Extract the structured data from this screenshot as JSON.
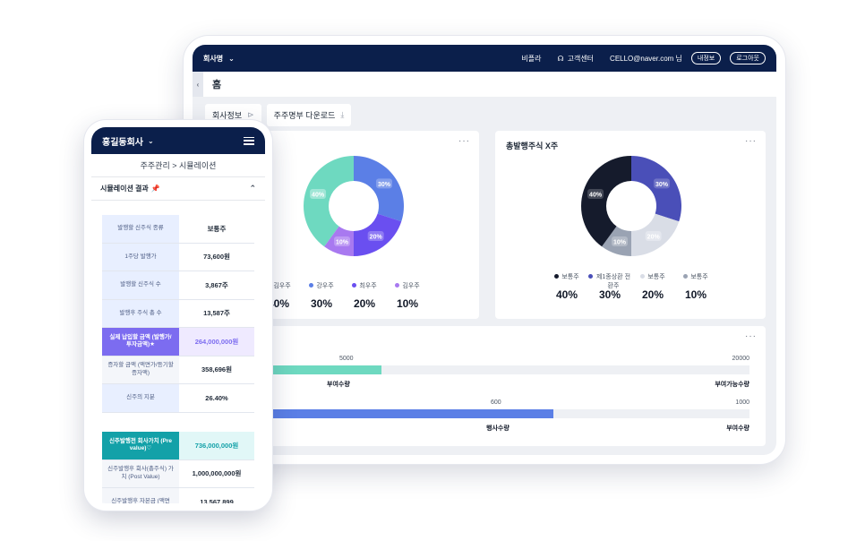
{
  "tablet": {
    "topbar": {
      "company": "회사명",
      "link_beta": "비플라",
      "link_support": "고객센터",
      "user": "CELLO@naver.com 님",
      "btn_mypage": "내정보",
      "btn_logout": "로그아웃"
    },
    "home": "홈",
    "tabs": [
      {
        "label": "회사정보",
        "icon": "chevron-right-circle-icon"
      },
      {
        "label": "주주명부 다운로드",
        "icon": "download-icon"
      }
    ],
    "chart_left": {
      "legend": [
        {
          "name": "김우주",
          "value": "40%"
        },
        {
          "name": "강우주",
          "value": "30%"
        },
        {
          "name": "최우주",
          "value": "20%"
        },
        {
          "name": "김우주",
          "value": "10%"
        }
      ]
    },
    "chart_right": {
      "title": "총발행주식 X주",
      "legend": [
        {
          "name": "보통주",
          "value": "40%"
        },
        {
          "name": "제1종상환 전환주",
          "value": "30%"
        },
        {
          "name": "보통주",
          "value": "20%"
        },
        {
          "name": "보통주",
          "value": "10%"
        }
      ]
    },
    "bars": {
      "bar1": {
        "value_label": "5000",
        "max_label": "20000",
        "label": "부여수량",
        "end_label": "부여가능수량"
      },
      "bar2": {
        "value_label": "600",
        "max_label": "1000",
        "label": "행사수량",
        "end_label": "부여수량"
      }
    }
  },
  "chart_data": [
    {
      "type": "pie",
      "categories": [
        "김우주",
        "강우주",
        "최우주",
        "김우주"
      ],
      "values": [
        40,
        30,
        20,
        10
      ],
      "colors": [
        "#6ed9c0",
        "#5b7fe6",
        "#6a4ff0",
        "#a879f0"
      ]
    },
    {
      "type": "pie",
      "title": "총발행주식 X주",
      "categories": [
        "보통주",
        "제1종상환 전환주",
        "보통주",
        "보통주"
      ],
      "values": [
        40,
        30,
        20,
        10
      ],
      "colors": [
        "#151b2c",
        "#4a4fb8",
        "#d9dde6",
        "#9aa3b3"
      ]
    },
    {
      "type": "bar",
      "categories": [
        "부여수량",
        "행사수량"
      ],
      "values": [
        5000,
        600
      ],
      "max": [
        20000,
        1000
      ],
      "colors": [
        "#6ed9c0",
        "#5b7fe6"
      ]
    }
  ],
  "phone": {
    "company": "홍길동회사",
    "breadcrumb": "주주관리 > 시뮬레이션",
    "section_title": "시뮬레이션 결과",
    "rows": [
      {
        "key": "발행할 신주식 종류",
        "value": "보통주"
      },
      {
        "key": "1주당 발행가",
        "value": "73,600원"
      },
      {
        "key": "발행할 신주식 수",
        "value": "3,867주"
      },
      {
        "key": "발행후 주식 총 수",
        "value": "13,587주"
      },
      {
        "key": "실제 납입할 금액 (발행가/투자금액)★",
        "value": "264,000,000원"
      },
      {
        "key": "증자할 금액 (액면가/등기할 증자액)",
        "value": "358,696원"
      },
      {
        "key": "신주의 지분",
        "value": "26.40%"
      }
    ],
    "rows2": [
      {
        "key": "신주발행전 회사가치 (Pre value)♡",
        "value": "736,000,000원"
      },
      {
        "key": "신주발행후 회사(총주식) 가치 (Post Value)",
        "value": "1,000,000,000원"
      },
      {
        "key": "신주발행후 자본금 (액면",
        "value": "13,567,899"
      }
    ]
  }
}
